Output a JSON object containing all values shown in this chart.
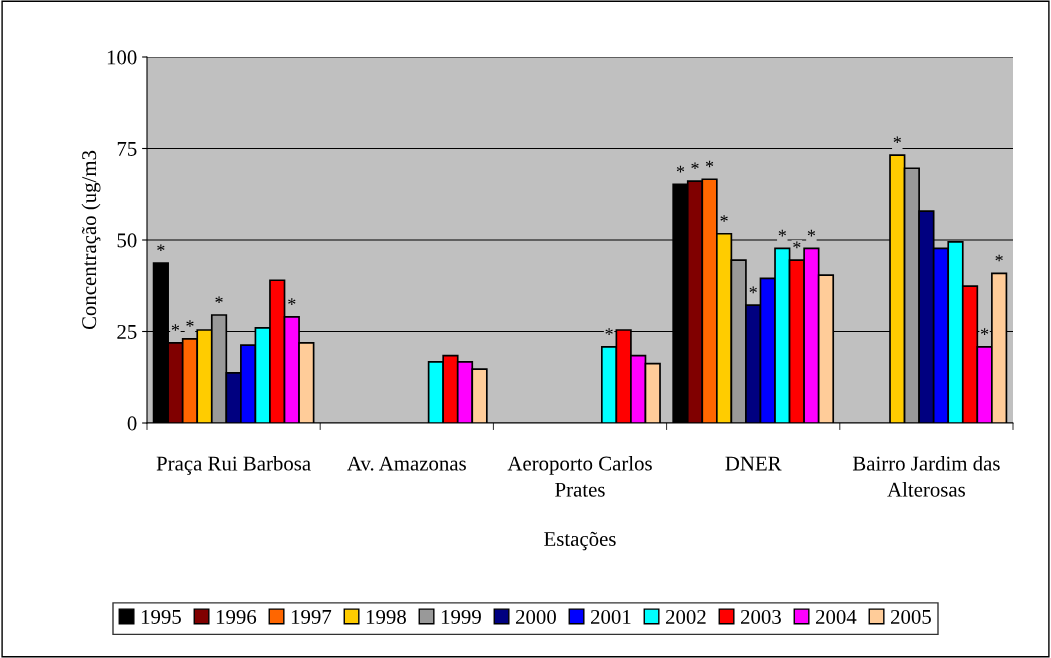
{
  "chart_data": {
    "type": "bar",
    "xlabel": "Estações",
    "ylabel": "Concentração (ug/m3",
    "categories": [
      "Praça Rui Barbosa",
      "Av. Amazonas",
      "Aeroporto Carlos Prates",
      "DNER",
      "Bairro Jardim das Alterosas"
    ],
    "ylim": [
      0,
      100
    ],
    "yticks": [
      0,
      25,
      50,
      75,
      100
    ],
    "grid": "y",
    "legend": "bottom",
    "series": [
      {
        "name": "1995",
        "color": "#000000",
        "values": [
          43.7,
          null,
          null,
          65.2,
          null
        ],
        "value_labels": [
          "*",
          null,
          null,
          "*",
          null
        ]
      },
      {
        "name": "1996",
        "color": "#800000",
        "values": [
          21.9,
          null,
          null,
          66.1,
          null
        ],
        "value_labels": [
          "*",
          null,
          null,
          "*",
          null
        ]
      },
      {
        "name": "1997",
        "color": "#ff6600",
        "values": [
          23.0,
          null,
          null,
          66.6,
          null
        ],
        "value_labels": [
          "*",
          null,
          null,
          "*",
          null
        ]
      },
      {
        "name": "1998",
        "color": "#ffcc00",
        "values": [
          25.4,
          null,
          null,
          51.7,
          73.2
        ],
        "value_labels": [
          null,
          null,
          null,
          "*",
          "*"
        ]
      },
      {
        "name": "1999",
        "color": "#999999",
        "values": [
          29.5,
          null,
          null,
          44.5,
          69.6
        ],
        "value_labels": [
          "*",
          null,
          null,
          null,
          null
        ]
      },
      {
        "name": "2000",
        "color": "#000080",
        "values": [
          13.7,
          null,
          null,
          32.2,
          57.9
        ],
        "value_labels": [
          null,
          null,
          null,
          "*",
          null
        ]
      },
      {
        "name": "2001",
        "color": "#0000ff",
        "values": [
          21.3,
          null,
          null,
          39.5,
          47.7
        ],
        "value_labels": [
          null,
          null,
          null,
          null,
          null
        ]
      },
      {
        "name": "2002",
        "color": "#00ffff",
        "values": [
          26.0,
          16.7,
          20.8,
          47.7,
          49.5
        ],
        "value_labels": [
          null,
          null,
          "*",
          "*",
          null
        ]
      },
      {
        "name": "2003",
        "color": "#ff0000",
        "values": [
          39.0,
          18.4,
          25.4,
          44.5,
          37.4
        ],
        "value_labels": [
          null,
          null,
          null,
          "*",
          null
        ]
      },
      {
        "name": "2004",
        "color": "#ff00ff",
        "values": [
          29.0,
          16.7,
          18.4,
          47.7,
          20.8
        ],
        "value_labels": [
          "*",
          null,
          null,
          "*",
          "*"
        ]
      },
      {
        "name": "2005",
        "color": "#ffcc99",
        "values": [
          21.9,
          14.7,
          16.2,
          40.4,
          40.9
        ],
        "value_labels": [
          null,
          null,
          null,
          null,
          "*"
        ]
      }
    ]
  }
}
